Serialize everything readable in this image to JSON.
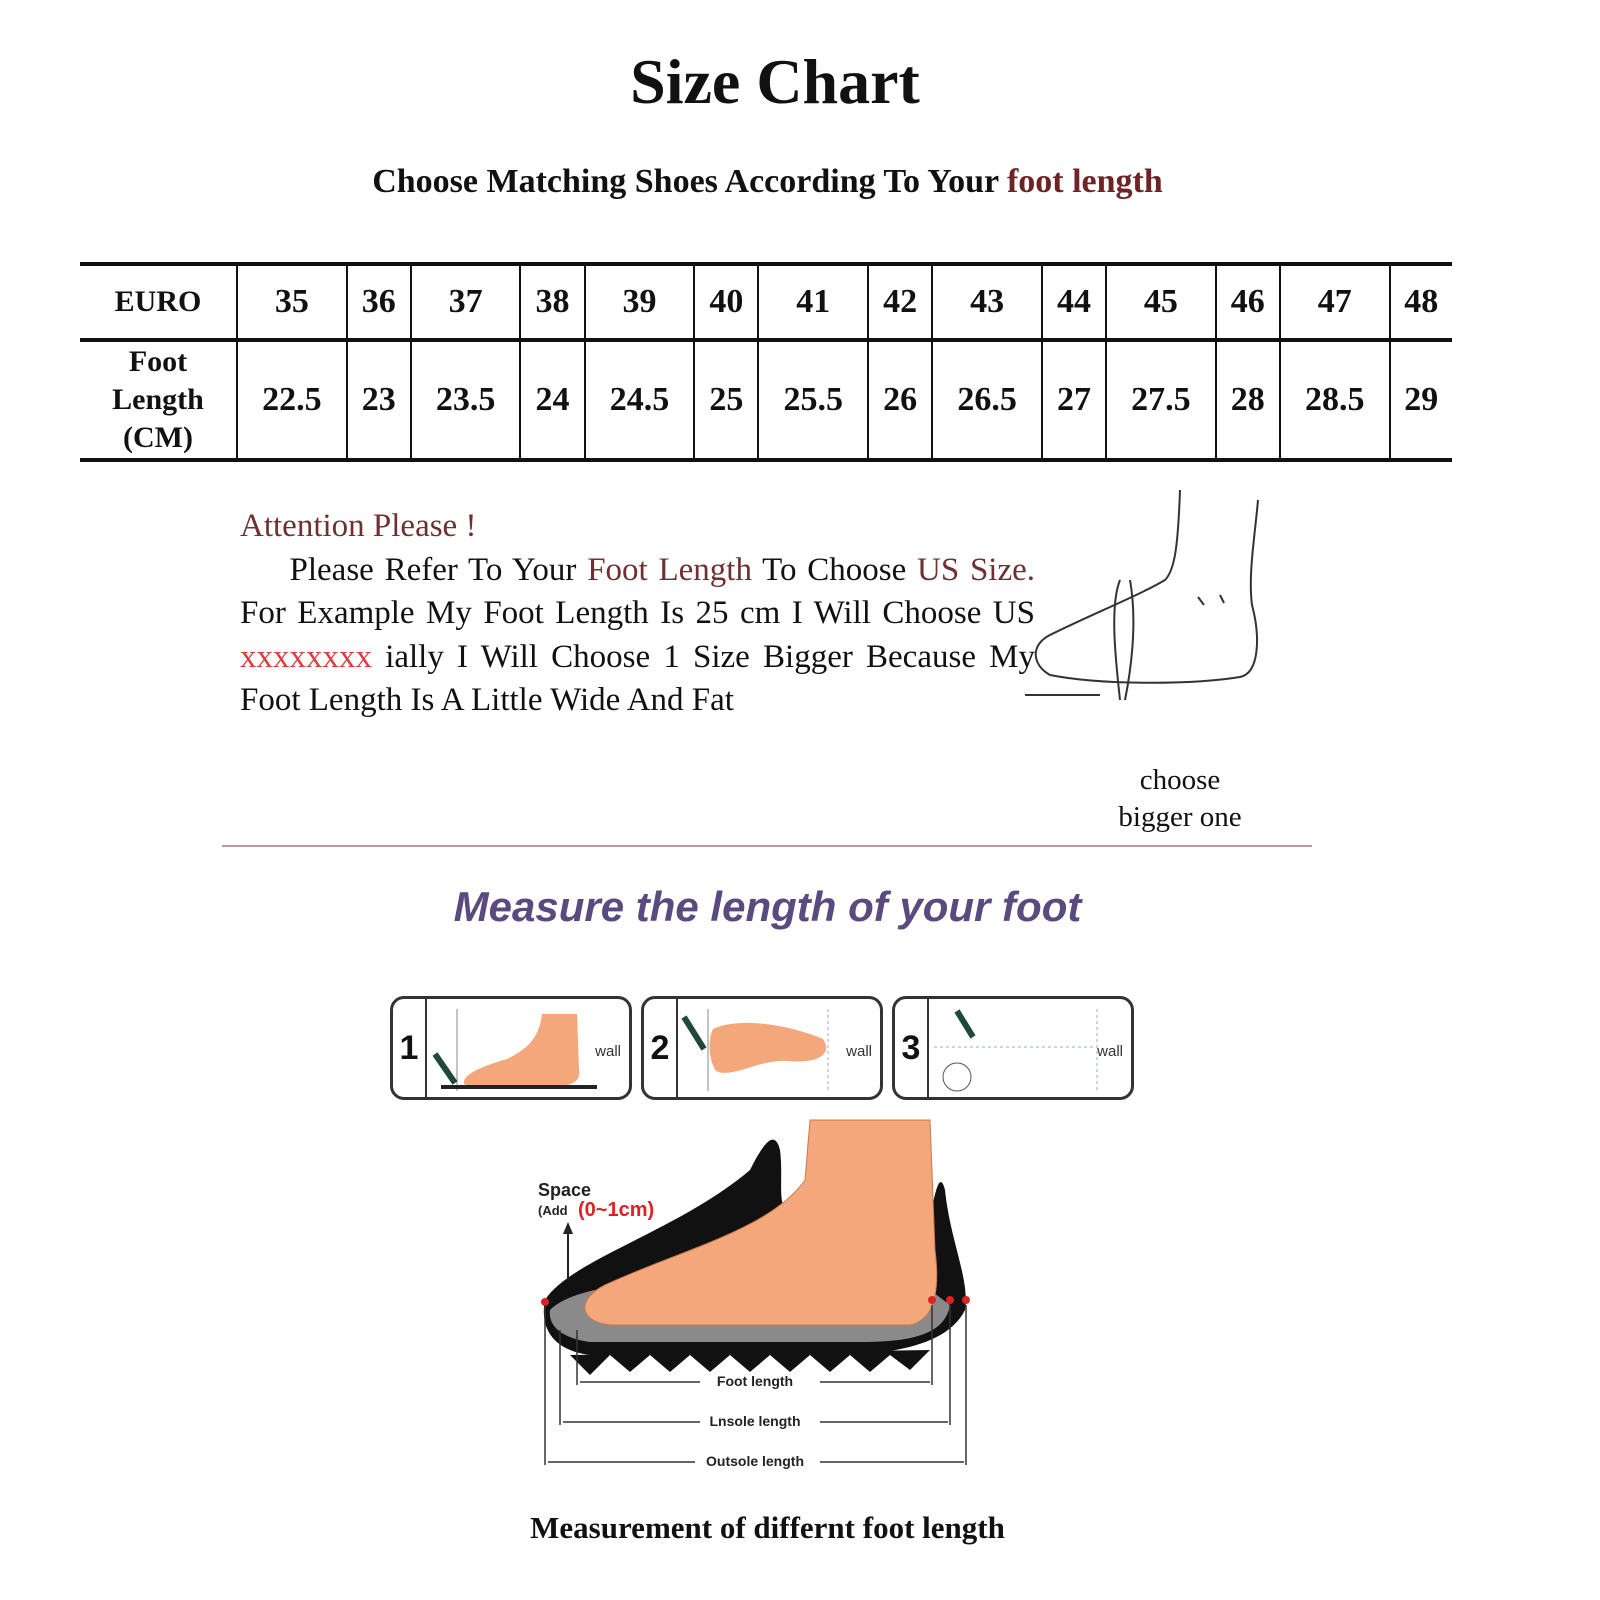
{
  "title": "Size Chart",
  "subtitle": {
    "text": "Choose Matching Shoes According To Your ",
    "highlight": "foot length"
  },
  "table": {
    "row_headers": [
      "EURO",
      "Foot",
      "Length",
      "(CM)"
    ],
    "euro": [
      "35",
      "36",
      "37",
      "38",
      "39",
      "40",
      "41",
      "42",
      "43",
      "44",
      "45",
      "46",
      "47",
      "48"
    ],
    "foot_length_cm": [
      "22.5",
      "23",
      "23.5",
      "24",
      "24.5",
      "25",
      "25.5",
      "26",
      "26.5",
      "27",
      "27.5",
      "28",
      "28.5",
      "29"
    ]
  },
  "attention": {
    "heading": "Attention Please !",
    "p1": "Please Refer To Your ",
    "p1_hl": "Foot Length",
    "p2": " To Choose ",
    "p2_hl": "US Size.",
    "p3": " For Example My Foot Length Is 25 cm I Will Choose US ",
    "p3_red": "xxxxxxxx",
    "p4": " ially I Will Choose 1 Size Bigger Because My Foot Length Is A Little Wide And Fat"
  },
  "choose_bigger": [
    "choose",
    "bigger one"
  ],
  "measure_heading": "Measure the length of your foot",
  "steps": [
    {
      "num": "1",
      "label": "wall"
    },
    {
      "num": "2",
      "label": "wall"
    },
    {
      "num": "3",
      "label": "wall"
    }
  ],
  "diagram": {
    "space": "Space",
    "add": "(Add",
    "add_range": "(0~1cm)",
    "foot_length": "Foot length",
    "insole_length": "Lnsole length",
    "outsole_length": "Outsole length"
  },
  "caption": "Measurement of differnt foot length",
  "colors": {
    "accent_brown": "#6e3030",
    "accent_red": "#e03a3a",
    "heading_purple": "#5a4a80",
    "skin": "#f4a77a"
  }
}
